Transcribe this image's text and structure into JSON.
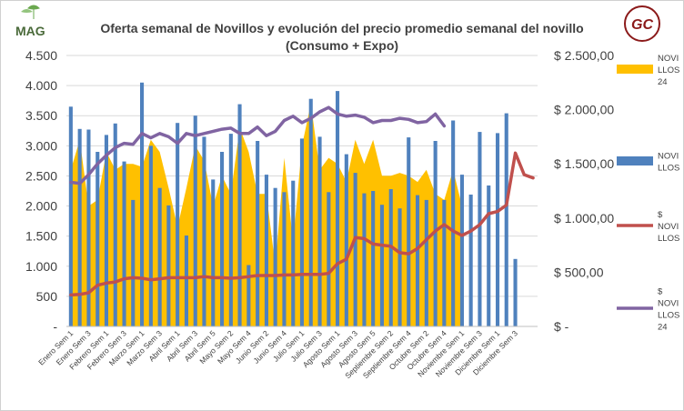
{
  "logo_left": {
    "text": "MAG"
  },
  "logo_right": {
    "text": "GC"
  },
  "chart_data": {
    "type": "bar",
    "title": "Oferta semanal de Novillos y evolución del precio promedio semanal del novillo",
    "subtitle": "(Consumo + Expo)",
    "xlabel": "",
    "ylabel": "",
    "ylim": [
      0,
      4500
    ],
    "y2lim": [
      0,
      2500
    ],
    "y_ticks": [
      "-",
      "500",
      "1.000",
      "1.500",
      "2.000",
      "2.500",
      "3.000",
      "3.500",
      "4.000",
      "4.500"
    ],
    "y2_ticks": [
      "$ -",
      "$ 500,00",
      "$ 1.000,00",
      "$ 1.500,00",
      "$ 2.000,00",
      "$ 2.500,00"
    ],
    "grid": true,
    "legend_position": "right",
    "x_tick_labels": [
      "Enero Sem 1",
      "Enero Sem 3",
      "Febrero Sem 1",
      "Febrero Sem 3",
      "Marzo Sem 1",
      "Marzo Sem 3",
      "Abril Sem 1",
      "Abril Sem 3",
      "Abril Sem 5",
      "Mayo Sem 2",
      "Mayo Sem 4",
      "Junio Sem 2",
      "Junio Sem 4",
      "Julio Sem 1",
      "Julio Sem 3",
      "Agosto Sem 1",
      "Agosto Sem 3",
      "Agosto Sem 5",
      "Septiembre Sem 2",
      "Septiembre Sem 4",
      "Octubre Sem 2",
      "Octubre Sem 4",
      "Noviembre Sem 1",
      "Noviembre Sem 3",
      "Diciembre Sem 1",
      "Diciembre Sem 3"
    ],
    "n_weeks": 53,
    "series": [
      {
        "name": "NOVILLOS 24",
        "kind": "area",
        "axis": "left",
        "color": "#FFC000",
        "legend_lines": [
          "NOVI",
          "LLOS",
          "24"
        ],
        "values": [
          2600,
          3100,
          2000,
          2100,
          2900,
          2600,
          2700,
          2700,
          2650,
          3100,
          2900,
          2300,
          1650,
          2300,
          3000,
          2750,
          2000,
          2500,
          2200,
          3300,
          2900,
          2200,
          2200,
          1000,
          2800,
          1400,
          3000,
          3700,
          2600,
          2800,
          2700,
          2400,
          3100,
          2700,
          3100,
          2500,
          2500,
          2550,
          2500,
          2400,
          2600,
          2200,
          2100,
          2600,
          2000
        ]
      },
      {
        "name": "NOVILLOS",
        "kind": "bar",
        "axis": "left",
        "color": "#4F81BD",
        "legend_lines": [
          "NOVI",
          "LLOS"
        ],
        "values": [
          3650,
          3280,
          3270,
          2900,
          3180,
          3370,
          2740,
          2100,
          4050,
          3000,
          2300,
          2010,
          3380,
          1510,
          3500,
          3150,
          2440,
          2900,
          3200,
          3690,
          1020,
          3080,
          2520,
          2300,
          2230,
          2420,
          3120,
          3780,
          3150,
          2230,
          3910,
          2860,
          2550,
          2210,
          2250,
          2020,
          2280,
          1960,
          3140,
          2180,
          2100,
          3080,
          2100,
          3420,
          2520,
          2190,
          3230,
          2340,
          3210,
          3540,
          1120
        ]
      },
      {
        "name": "$ NOVILLOS",
        "kind": "line",
        "axis": "right",
        "color": "#C0504D",
        "legend_lines": [
          "$",
          "NOVI",
          "LLOS"
        ],
        "values": [
          290,
          295,
          310,
          380,
          400,
          410,
          440,
          450,
          445,
          430,
          440,
          450,
          450,
          450,
          450,
          460,
          450,
          450,
          445,
          450,
          460,
          470,
          470,
          470,
          475,
          475,
          480,
          480,
          480,
          490,
          580,
          620,
          820,
          810,
          760,
          750,
          740,
          680,
          670,
          720,
          800,
          880,
          940,
          880,
          840,
          880,
          940,
          1040,
          1060,
          1120,
          1600,
          1400,
          1370
        ]
      },
      {
        "name": "$ NOVILLOS 24",
        "kind": "line",
        "axis": "right",
        "color": "#8064A2",
        "legend_lines": [
          "$",
          "NOVI",
          "LLOS",
          "24"
        ],
        "values": [
          1330,
          1320,
          1400,
          1500,
          1580,
          1650,
          1690,
          1680,
          1780,
          1740,
          1780,
          1750,
          1690,
          1780,
          1760,
          1780,
          1800,
          1820,
          1830,
          1780,
          1780,
          1840,
          1760,
          1800,
          1900,
          1940,
          1880,
          1920,
          1980,
          2020,
          1960,
          1940,
          1950,
          1930,
          1880,
          1900,
          1900,
          1920,
          1910,
          1880,
          1890,
          1960,
          1850
        ]
      }
    ]
  }
}
